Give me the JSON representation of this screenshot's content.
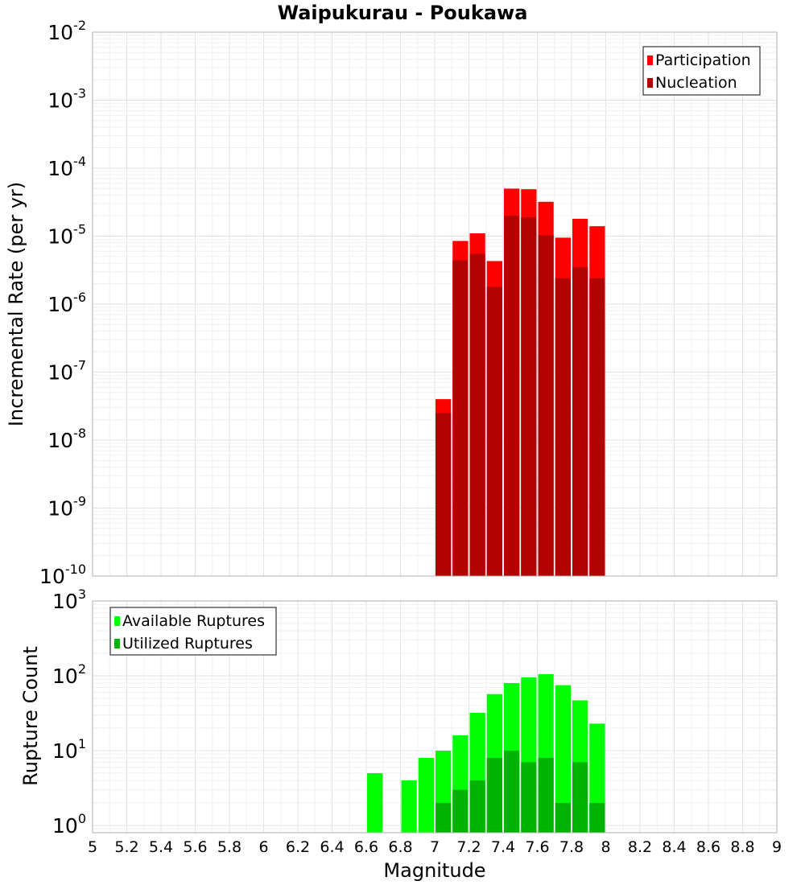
{
  "chart_data": [
    {
      "type": "bar",
      "panel": "rate",
      "title": "Waipukurau - Poukawa",
      "xlabel": "",
      "ylabel": "Incremental Rate (per yr)",
      "yscale": "log",
      "ylim": [
        1e-10,
        0.01
      ],
      "y_ticks": [
        {
          "base": "10",
          "exp": "-10"
        },
        {
          "base": "10",
          "exp": "-9"
        },
        {
          "base": "10",
          "exp": "-8"
        },
        {
          "base": "10",
          "exp": "-7"
        },
        {
          "base": "10",
          "exp": "-6"
        },
        {
          "base": "10",
          "exp": "-5"
        },
        {
          "base": "10",
          "exp": "-4"
        },
        {
          "base": "10",
          "exp": "-3"
        },
        {
          "base": "10",
          "exp": "-2"
        }
      ],
      "legend_position": "top-right",
      "series": [
        {
          "name": "Participation",
          "color": "#ff0000",
          "x": [
            7.05,
            7.15,
            7.25,
            7.35,
            7.45,
            7.55,
            7.65,
            7.75,
            7.85,
            7.95
          ],
          "values": [
            4e-08,
            8.5e-06,
            1.1e-05,
            4.3e-06,
            5e-05,
            4.9e-05,
            3.2e-05,
            9.5e-06,
            1.8e-05,
            1.4e-05
          ]
        },
        {
          "name": "Nucleation",
          "color": "#b30000",
          "x": [
            7.05,
            7.15,
            7.25,
            7.35,
            7.45,
            7.55,
            7.65,
            7.75,
            7.85,
            7.95
          ],
          "values": [
            2.5e-08,
            4.4e-06,
            5.5e-06,
            1.8e-06,
            2e-05,
            1.9e-05,
            1.03e-05,
            2.4e-06,
            3.5e-06,
            2.4e-06
          ]
        }
      ]
    },
    {
      "type": "bar",
      "panel": "count",
      "title": "",
      "xlabel": "Magnitude",
      "ylabel": "Rupture Count",
      "yscale": "log",
      "ylim": [
        0.8,
        1000
      ],
      "xlim": [
        5,
        9
      ],
      "x_ticks": [
        "5",
        "5.2",
        "5.4",
        "5.6",
        "5.8",
        "6",
        "6.2",
        "6.4",
        "6.6",
        "6.8",
        "7",
        "7.2",
        "7.4",
        "7.6",
        "7.8",
        "8",
        "8.2",
        "8.4",
        "8.6",
        "8.8",
        "9"
      ],
      "y_ticks": [
        {
          "base": "10",
          "exp": "0"
        },
        {
          "base": "10",
          "exp": "1"
        },
        {
          "base": "10",
          "exp": "2"
        },
        {
          "base": "10",
          "exp": "3"
        }
      ],
      "legend_position": "top-left",
      "series": [
        {
          "name": "Available Ruptures",
          "color": "#00ff00",
          "x": [
            6.65,
            6.85,
            6.95,
            7.05,
            7.15,
            7.25,
            7.35,
            7.45,
            7.55,
            7.65,
            7.75,
            7.85,
            7.95
          ],
          "values": [
            5,
            4,
            8,
            10,
            16,
            32,
            57,
            80,
            95,
            105,
            75,
            47,
            23
          ]
        },
        {
          "name": "Utilized Ruptures",
          "color": "#00b300",
          "x": [
            7.05,
            7.15,
            7.25,
            7.35,
            7.45,
            7.55,
            7.65,
            7.75,
            7.85,
            7.95
          ],
          "values": [
            2,
            3,
            4,
            8,
            10,
            7,
            8,
            2,
            7,
            2
          ]
        }
      ]
    }
  ]
}
